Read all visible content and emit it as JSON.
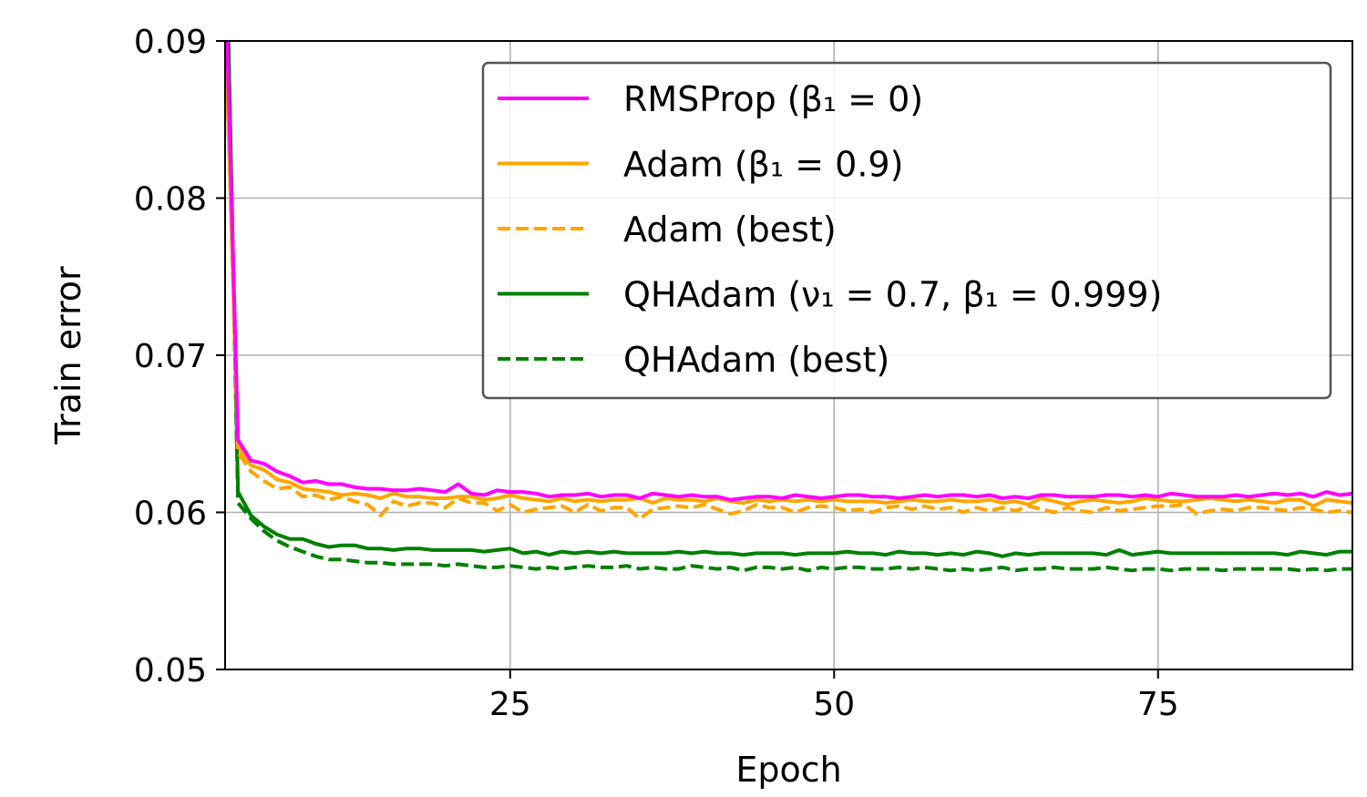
{
  "chart_data": {
    "type": "line",
    "xlabel": "Epoch",
    "ylabel": "Train error",
    "xlim": [
      3,
      90
    ],
    "ylim": [
      0.05,
      0.09
    ],
    "xticks": [
      25,
      50,
      75
    ],
    "xtick_labels": [
      "25",
      "50",
      "75"
    ],
    "yticks": [
      0.05,
      0.06,
      0.07,
      0.08,
      0.09
    ],
    "ytick_labels": [
      "0.05",
      "0.06",
      "0.07",
      "0.08",
      "0.09"
    ],
    "grid": true,
    "legend_position": "top-right",
    "x": [
      3,
      4,
      5,
      6,
      7,
      8,
      9,
      10,
      11,
      12,
      13,
      14,
      15,
      16,
      17,
      18,
      19,
      20,
      21,
      22,
      23,
      24,
      25,
      26,
      27,
      28,
      29,
      30,
      31,
      32,
      33,
      34,
      35,
      36,
      37,
      38,
      39,
      40,
      41,
      42,
      43,
      44,
      45,
      46,
      47,
      48,
      49,
      50,
      51,
      52,
      53,
      54,
      55,
      56,
      57,
      58,
      59,
      60,
      61,
      62,
      63,
      64,
      65,
      66,
      67,
      68,
      69,
      70,
      71,
      72,
      73,
      74,
      75,
      76,
      77,
      78,
      79,
      80,
      81,
      82,
      83,
      84,
      85,
      86,
      87,
      88,
      89,
      90
    ],
    "series": [
      {
        "name": "RMSProp (β₁ = 0)",
        "color": "#ff00ff",
        "dash": "solid",
        "values": [
          0.0949,
          0.0646,
          0.0633,
          0.0631,
          0.0626,
          0.0623,
          0.0619,
          0.062,
          0.0618,
          0.0618,
          0.0616,
          0.0615,
          0.0615,
          0.0614,
          0.0614,
          0.0615,
          0.0614,
          0.0613,
          0.0618,
          0.0612,
          0.0611,
          0.0614,
          0.0613,
          0.0613,
          0.0612,
          0.061,
          0.0611,
          0.0611,
          0.0612,
          0.061,
          0.0611,
          0.0611,
          0.0609,
          0.0612,
          0.0611,
          0.061,
          0.0611,
          0.061,
          0.061,
          0.0608,
          0.0609,
          0.061,
          0.061,
          0.0609,
          0.0611,
          0.061,
          0.0609,
          0.061,
          0.0611,
          0.0611,
          0.061,
          0.061,
          0.0609,
          0.061,
          0.0611,
          0.061,
          0.0611,
          0.0611,
          0.061,
          0.0611,
          0.0609,
          0.061,
          0.0609,
          0.0611,
          0.0611,
          0.061,
          0.061,
          0.061,
          0.0611,
          0.0611,
          0.061,
          0.0611,
          0.061,
          0.0612,
          0.0611,
          0.061,
          0.061,
          0.061,
          0.0611,
          0.061,
          0.0611,
          0.0612,
          0.0611,
          0.0612,
          0.061,
          0.0613,
          0.0611,
          0.0612
        ]
      },
      {
        "name": "Adam (β₁ = 0.9)",
        "color": "#ffa500",
        "dash": "solid",
        "values": [
          0.092,
          0.0642,
          0.063,
          0.0627,
          0.0621,
          0.0619,
          0.0615,
          0.0614,
          0.0613,
          0.0611,
          0.0612,
          0.0611,
          0.0609,
          0.0612,
          0.061,
          0.061,
          0.0609,
          0.0609,
          0.061,
          0.061,
          0.0608,
          0.0609,
          0.0611,
          0.0609,
          0.0608,
          0.0607,
          0.0609,
          0.0607,
          0.0608,
          0.0607,
          0.0608,
          0.0608,
          0.0609,
          0.0606,
          0.0609,
          0.0608,
          0.0608,
          0.0607,
          0.0609,
          0.0607,
          0.0606,
          0.0608,
          0.0607,
          0.0608,
          0.0607,
          0.0608,
          0.0607,
          0.0608,
          0.0607,
          0.0607,
          0.0607,
          0.0606,
          0.0607,
          0.0608,
          0.0607,
          0.0607,
          0.0608,
          0.0607,
          0.0607,
          0.0608,
          0.0606,
          0.0607,
          0.0605,
          0.0609,
          0.0607,
          0.0605,
          0.0607,
          0.0608,
          0.0607,
          0.0606,
          0.0607,
          0.0609,
          0.0608,
          0.0607,
          0.0607,
          0.0608,
          0.0609,
          0.0608,
          0.0607,
          0.0608,
          0.0607,
          0.0606,
          0.0608,
          0.0608,
          0.0604,
          0.0608,
          0.0607,
          0.0606
        ]
      },
      {
        "name": "Adam (best)",
        "color": "#ffa500",
        "dash": "dashed",
        "values": [
          0.0915,
          0.0638,
          0.0626,
          0.062,
          0.0615,
          0.0616,
          0.061,
          0.0611,
          0.0608,
          0.061,
          0.0607,
          0.0605,
          0.0598,
          0.0607,
          0.0604,
          0.0606,
          0.0606,
          0.0603,
          0.0609,
          0.0606,
          0.0606,
          0.0601,
          0.0605,
          0.06,
          0.0602,
          0.0603,
          0.0604,
          0.06,
          0.0605,
          0.0601,
          0.0603,
          0.0603,
          0.0596,
          0.0602,
          0.0603,
          0.0604,
          0.0603,
          0.0605,
          0.0602,
          0.0599,
          0.0601,
          0.0605,
          0.0603,
          0.0603,
          0.06,
          0.0603,
          0.0604,
          0.0603,
          0.0601,
          0.0602,
          0.06,
          0.0603,
          0.0604,
          0.0602,
          0.0604,
          0.0602,
          0.0603,
          0.06,
          0.0603,
          0.0601,
          0.0603,
          0.0601,
          0.0604,
          0.0602,
          0.06,
          0.0603,
          0.0601,
          0.06,
          0.0603,
          0.0601,
          0.0602,
          0.0603,
          0.0604,
          0.0604,
          0.0605,
          0.0599,
          0.0601,
          0.0602,
          0.0601,
          0.0603,
          0.0603,
          0.0602,
          0.0601,
          0.0603,
          0.0602,
          0.06,
          0.0601,
          0.06
        ]
      },
      {
        "name": "QHAdam (ν₁ = 0.7, β₁ = 0.999)",
        "color": "#008000",
        "dash": "solid",
        "values": [
          0.1,
          0.0613,
          0.0598,
          0.0591,
          0.0586,
          0.0583,
          0.0583,
          0.058,
          0.0578,
          0.0579,
          0.0579,
          0.0577,
          0.0577,
          0.0576,
          0.0577,
          0.0577,
          0.0576,
          0.0576,
          0.0576,
          0.0576,
          0.0575,
          0.0576,
          0.0577,
          0.0574,
          0.0575,
          0.0573,
          0.0575,
          0.0574,
          0.0575,
          0.0574,
          0.0575,
          0.0574,
          0.0574,
          0.0574,
          0.0574,
          0.0575,
          0.0574,
          0.0575,
          0.0574,
          0.0574,
          0.0573,
          0.0574,
          0.0574,
          0.0574,
          0.0573,
          0.0574,
          0.0574,
          0.0574,
          0.0575,
          0.0574,
          0.0574,
          0.0573,
          0.0575,
          0.0574,
          0.0574,
          0.0573,
          0.0574,
          0.0573,
          0.0575,
          0.0574,
          0.0572,
          0.0574,
          0.0573,
          0.0574,
          0.0574,
          0.0574,
          0.0574,
          0.0574,
          0.0573,
          0.0576,
          0.0573,
          0.0574,
          0.0575,
          0.0574,
          0.0574,
          0.0574,
          0.0574,
          0.0574,
          0.0574,
          0.0574,
          0.0574,
          0.0574,
          0.0573,
          0.0575,
          0.0574,
          0.0573,
          0.0575,
          0.0575
        ]
      },
      {
        "name": "QHAdam (best)",
        "color": "#008000",
        "dash": "dashed",
        "values": [
          0.1,
          0.0606,
          0.0596,
          0.0588,
          0.0582,
          0.0578,
          0.0575,
          0.0572,
          0.057,
          0.057,
          0.0569,
          0.0568,
          0.0568,
          0.0567,
          0.0567,
          0.0567,
          0.0567,
          0.0566,
          0.0567,
          0.0566,
          0.0565,
          0.0565,
          0.0566,
          0.0565,
          0.0564,
          0.0565,
          0.0564,
          0.0565,
          0.0566,
          0.0565,
          0.0565,
          0.0566,
          0.0564,
          0.0565,
          0.0564,
          0.0564,
          0.0566,
          0.0565,
          0.0564,
          0.0565,
          0.0563,
          0.0565,
          0.0565,
          0.0564,
          0.0565,
          0.0563,
          0.0565,
          0.0564,
          0.0565,
          0.0565,
          0.0564,
          0.0564,
          0.0565,
          0.0564,
          0.0565,
          0.0564,
          0.0563,
          0.0564,
          0.0563,
          0.0564,
          0.0565,
          0.0563,
          0.0564,
          0.0564,
          0.0565,
          0.0564,
          0.0564,
          0.0564,
          0.0565,
          0.0564,
          0.0563,
          0.0564,
          0.0564,
          0.0563,
          0.0564,
          0.0564,
          0.0564,
          0.0563,
          0.0564,
          0.0564,
          0.0564,
          0.0564,
          0.0564,
          0.0563,
          0.0564,
          0.0563,
          0.0564,
          0.0564
        ]
      }
    ]
  }
}
